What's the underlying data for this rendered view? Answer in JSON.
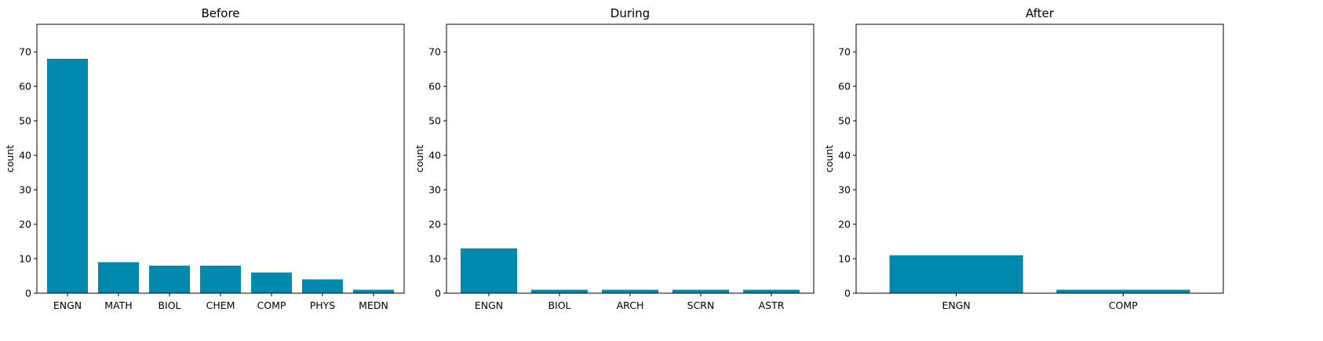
{
  "style": {
    "bar_color": "#0088ad",
    "axis_color": "#000000",
    "background": "#ffffff"
  },
  "chart_data": [
    {
      "type": "bar",
      "title": "Before",
      "xlabel": "",
      "ylabel": "count",
      "ylim": [
        0,
        78
      ],
      "yticks": [
        0,
        10,
        20,
        30,
        40,
        50,
        60,
        70
      ],
      "categories": [
        "ENGN",
        "MATH",
        "BIOL",
        "CHEM",
        "COMP",
        "PHYS",
        "MEDN"
      ],
      "values": [
        68,
        9,
        8,
        8,
        6,
        4,
        1
      ],
      "grid": false
    },
    {
      "type": "bar",
      "title": "During",
      "xlabel": "",
      "ylabel": "count",
      "ylim": [
        0,
        78
      ],
      "yticks": [
        0,
        10,
        20,
        30,
        40,
        50,
        60,
        70
      ],
      "categories": [
        "ENGN",
        "BIOL",
        "ARCH",
        "SCRN",
        "ASTR"
      ],
      "values": [
        13,
        1,
        1,
        1,
        1
      ],
      "grid": false
    },
    {
      "type": "bar",
      "title": "After",
      "xlabel": "",
      "ylabel": "count",
      "ylim": [
        0,
        78
      ],
      "yticks": [
        0,
        10,
        20,
        30,
        40,
        50,
        60,
        70
      ],
      "categories": [
        "ENGN",
        "COMP"
      ],
      "values": [
        11,
        1
      ],
      "grid": false
    }
  ]
}
